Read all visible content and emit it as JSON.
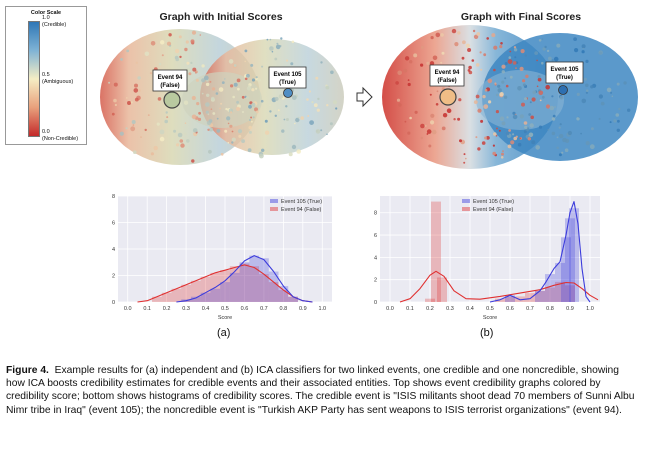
{
  "color_scale": {
    "title": "Color Scale",
    "ticks": [
      {
        "value": "1.0",
        "label": "(Credible)",
        "frac": 0.0
      },
      {
        "value": "0.5",
        "label": "(Ambiguous)",
        "frac": 0.5
      },
      {
        "value": "0.0",
        "label": "(Non-Credible)",
        "frac": 1.0
      }
    ],
    "colors": {
      "credible": "#2f77b6",
      "ambiguous": "#f5edc4",
      "noncredible": "#c42a2a"
    }
  },
  "graphs": [
    {
      "title": "Graph with Initial Scores",
      "events": [
        {
          "name": "Event 94",
          "label": "(False)"
        },
        {
          "name": "Event 105",
          "label": "(True)"
        }
      ]
    },
    {
      "title": "Graph with Final Scores",
      "events": [
        {
          "name": "Event 94",
          "label": "(False)"
        },
        {
          "name": "Event 105",
          "label": "(True)"
        }
      ]
    }
  ],
  "chart_data": [
    {
      "type": "area",
      "xlabel": "Score",
      "xlim": [
        -0.05,
        1.05
      ],
      "ylim": [
        0,
        8
      ],
      "xticks": [
        "0.0",
        "0.1",
        "0.2",
        "0.3",
        "0.4",
        "0.5",
        "0.6",
        "0.7",
        "0.8",
        "0.9",
        "1.0"
      ],
      "yticks": [
        "0",
        "2",
        "4",
        "6",
        "8"
      ],
      "legend_position": "top-right",
      "series": [
        {
          "name": "Event 105 (True)",
          "color": "#3c3cdc",
          "hist": [
            [
              0.3,
              0.2
            ],
            [
              0.35,
              0.4
            ],
            [
              0.4,
              0.7
            ],
            [
              0.45,
              1.0
            ],
            [
              0.5,
              1.5
            ],
            [
              0.55,
              2.2
            ],
            [
              0.6,
              3.0
            ],
            [
              0.65,
              3.5
            ],
            [
              0.7,
              3.3
            ],
            [
              0.75,
              2.3
            ],
            [
              0.8,
              1.2
            ],
            [
              0.85,
              0.4
            ]
          ],
          "kde": [
            [
              0.25,
              0
            ],
            [
              0.3,
              0.1
            ],
            [
              0.35,
              0.3
            ],
            [
              0.4,
              0.7
            ],
            [
              0.45,
              1.1
            ],
            [
              0.5,
              1.6
            ],
            [
              0.55,
              2.3
            ],
            [
              0.6,
              3.1
            ],
            [
              0.65,
              3.5
            ],
            [
              0.7,
              3.2
            ],
            [
              0.75,
              2.3
            ],
            [
              0.8,
              1.2
            ],
            [
              0.85,
              0.4
            ],
            [
              0.9,
              0.1
            ],
            [
              0.95,
              0
            ]
          ]
        },
        {
          "name": "Event 94 (False)",
          "color": "#e03030",
          "hist": [
            [
              0.15,
              0.4
            ],
            [
              0.2,
              0.7
            ],
            [
              0.25,
              1.0
            ],
            [
              0.3,
              1.3
            ],
            [
              0.35,
              1.6
            ],
            [
              0.4,
              1.9
            ],
            [
              0.45,
              2.2
            ],
            [
              0.5,
              2.4
            ],
            [
              0.55,
              2.7
            ],
            [
              0.6,
              2.9
            ],
            [
              0.65,
              2.7
            ],
            [
              0.7,
              2.1
            ],
            [
              0.75,
              1.5
            ],
            [
              0.8,
              0.9
            ],
            [
              0.85,
              0.4
            ]
          ],
          "kde": [
            [
              0.05,
              0
            ],
            [
              0.1,
              0.1
            ],
            [
              0.15,
              0.4
            ],
            [
              0.2,
              0.7
            ],
            [
              0.25,
              1.0
            ],
            [
              0.3,
              1.3
            ],
            [
              0.35,
              1.6
            ],
            [
              0.4,
              1.9
            ],
            [
              0.45,
              2.2
            ],
            [
              0.5,
              2.4
            ],
            [
              0.55,
              2.6
            ],
            [
              0.6,
              2.8
            ],
            [
              0.65,
              2.6
            ],
            [
              0.7,
              2.1
            ],
            [
              0.75,
              1.5
            ],
            [
              0.8,
              0.9
            ],
            [
              0.85,
              0.4
            ],
            [
              0.9,
              0.1
            ],
            [
              0.95,
              0
            ]
          ]
        }
      ]
    },
    {
      "type": "area",
      "xlabel": "Score",
      "xlim": [
        -0.05,
        1.05
      ],
      "ylim": [
        0,
        9.5
      ],
      "xticks": [
        "0.0",
        "0.1",
        "0.2",
        "0.3",
        "0.4",
        "0.5",
        "0.6",
        "0.7",
        "0.8",
        "0.9",
        "1.0"
      ],
      "yticks": [
        "0",
        "2",
        "4",
        "6",
        "8"
      ],
      "legend_position": "top-center",
      "series": [
        {
          "name": "Event 105 (True)",
          "color": "#3c3cdc",
          "hist": [
            [
              0.6,
              0.6
            ],
            [
              0.75,
              1.0
            ],
            [
              0.8,
              2.5
            ],
            [
              0.85,
              3.5
            ],
            [
              0.88,
              5.8
            ],
            [
              0.9,
              7.5
            ],
            [
              0.92,
              8.4
            ]
          ],
          "kde": [
            [
              0.5,
              0
            ],
            [
              0.55,
              0.2
            ],
            [
              0.6,
              0.6
            ],
            [
              0.65,
              0.2
            ],
            [
              0.7,
              0.3
            ],
            [
              0.75,
              1.0
            ],
            [
              0.78,
              1.8
            ],
            [
              0.82,
              3.0
            ],
            [
              0.85,
              3.6
            ],
            [
              0.88,
              6.0
            ],
            [
              0.9,
              8.0
            ],
            [
              0.92,
              9.0
            ],
            [
              0.94,
              7.0
            ],
            [
              0.96,
              3.0
            ],
            [
              0.98,
              0.5
            ],
            [
              1.0,
              0
            ]
          ]
        },
        {
          "name": "Event 94 (False)",
          "color": "#e03030",
          "hist": [
            [
              0.2,
              0.3
            ],
            [
              0.23,
              9.0
            ],
            [
              0.26,
              2.2
            ],
            [
              0.55,
              0.3
            ],
            [
              0.6,
              0.5
            ],
            [
              0.65,
              0.5
            ],
            [
              0.7,
              0.8
            ],
            [
              0.75,
              1.0
            ],
            [
              0.8,
              1.3
            ],
            [
              0.85,
              1.8
            ],
            [
              0.9,
              1.5
            ]
          ],
          "kde": [
            [
              0.05,
              0
            ],
            [
              0.1,
              0.3
            ],
            [
              0.15,
              1.2
            ],
            [
              0.2,
              2.4
            ],
            [
              0.23,
              2.75
            ],
            [
              0.27,
              2.3
            ],
            [
              0.32,
              1.0
            ],
            [
              0.38,
              0.3
            ],
            [
              0.45,
              0.25
            ],
            [
              0.55,
              0.5
            ],
            [
              0.65,
              0.8
            ],
            [
              0.75,
              1.1
            ],
            [
              0.82,
              1.5
            ],
            [
              0.88,
              1.75
            ],
            [
              0.92,
              1.7
            ],
            [
              0.96,
              1.2
            ],
            [
              1.0,
              0.6
            ],
            [
              1.04,
              0.2
            ]
          ]
        }
      ]
    }
  ],
  "subfig_labels": [
    "(a)",
    "(b)"
  ],
  "caption": {
    "label": "Figure 4.",
    "text": "Example results for (a) independent and (b) ICA classifiers for two linked events, one credible and one noncredible, showing how ICA boosts credibility estimates for credible events and their associated entities. Top shows event credibility graphs colored by credibility score; bottom shows histograms of credibility scores. The credible event is \"ISIS militants shoot dead 70 members of Sunni Albu Nimr tribe in Iraq\" (event 105); the noncredible event is \"Turkish AKP Party has sent weapons to ISIS terrorist organizations\" (event 94)."
  }
}
